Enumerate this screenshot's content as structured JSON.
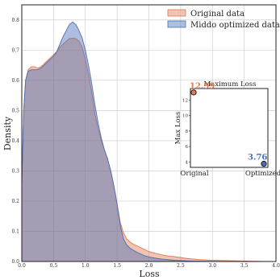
{
  "chart_data": [
    {
      "type": "area",
      "title": "",
      "xlabel": "Loss",
      "ylabel": "Density",
      "xlim": [
        0,
        4
      ],
      "ylim": [
        0,
        0.85
      ],
      "xticks": [
        "0.0",
        "0.5",
        "1.0",
        "1.5",
        "2.0",
        "2.5",
        "3.0",
        "3.5",
        "4.0"
      ],
      "yticks": [
        "0.0",
        "0.1",
        "0.2",
        "0.3",
        "0.4",
        "0.5",
        "0.6",
        "0.7",
        "0.8"
      ],
      "grid": true,
      "legend": "top-right",
      "series": [
        {
          "name": "Original data",
          "color": "#e07b54",
          "x": [
            0.0,
            0.03,
            0.06,
            0.1,
            0.15,
            0.2,
            0.25,
            0.3,
            0.35,
            0.4,
            0.45,
            0.5,
            0.55,
            0.6,
            0.65,
            0.7,
            0.75,
            0.8,
            0.85,
            0.9,
            0.95,
            1.0,
            1.05,
            1.1,
            1.15,
            1.2,
            1.25,
            1.3,
            1.35,
            1.4,
            1.45,
            1.5,
            1.55,
            1.6,
            1.65,
            1.7,
            1.75,
            1.8,
            1.85,
            1.9,
            1.95,
            2.0,
            2.1,
            2.2,
            2.3,
            2.4,
            2.5,
            2.6,
            2.7,
            2.8,
            2.9,
            3.0,
            3.2,
            3.4,
            3.6,
            3.8,
            4.0
          ],
          "y": [
            0.25,
            0.5,
            0.6,
            0.635,
            0.645,
            0.645,
            0.64,
            0.645,
            0.655,
            0.665,
            0.675,
            0.685,
            0.695,
            0.71,
            0.72,
            0.73,
            0.738,
            0.74,
            0.738,
            0.73,
            0.71,
            0.67,
            0.62,
            0.56,
            0.49,
            0.44,
            0.4,
            0.37,
            0.34,
            0.3,
            0.25,
            0.19,
            0.13,
            0.095,
            0.075,
            0.065,
            0.058,
            0.053,
            0.048,
            0.043,
            0.038,
            0.033,
            0.027,
            0.022,
            0.018,
            0.016,
            0.013,
            0.01,
            0.008,
            0.006,
            0.005,
            0.004,
            0.003,
            0.002,
            0.001,
            0.0005,
            0.0
          ]
        },
        {
          "name": "Middo optimized data",
          "color": "#4a6fb5",
          "x": [
            0.0,
            0.03,
            0.06,
            0.1,
            0.15,
            0.2,
            0.25,
            0.3,
            0.35,
            0.4,
            0.45,
            0.5,
            0.55,
            0.6,
            0.65,
            0.7,
            0.75,
            0.8,
            0.85,
            0.9,
            0.95,
            1.0,
            1.05,
            1.1,
            1.15,
            1.2,
            1.25,
            1.3,
            1.35,
            1.4,
            1.45,
            1.5,
            1.55,
            1.6,
            1.65,
            1.7,
            1.75,
            1.8,
            1.85,
            1.9,
            1.95,
            2.0,
            2.1,
            2.2,
            2.3,
            2.4,
            2.5,
            2.6,
            2.7,
            2.8,
            2.9,
            3.0,
            3.2,
            3.4,
            3.6,
            3.8,
            4.0
          ],
          "y": [
            0.25,
            0.5,
            0.6,
            0.63,
            0.635,
            0.635,
            0.635,
            0.64,
            0.65,
            0.66,
            0.67,
            0.68,
            0.695,
            0.72,
            0.745,
            0.765,
            0.785,
            0.793,
            0.785,
            0.765,
            0.74,
            0.7,
            0.65,
            0.59,
            0.52,
            0.46,
            0.41,
            0.37,
            0.34,
            0.3,
            0.25,
            0.19,
            0.12,
            0.075,
            0.055,
            0.045,
            0.038,
            0.032,
            0.027,
            0.022,
            0.018,
            0.015,
            0.011,
            0.008,
            0.006,
            0.004,
            0.003,
            0.002,
            0.0015,
            0.001,
            0.0008,
            0.0005,
            0.0003,
            0.0002,
            0.0001,
            0.0,
            0.0
          ]
        }
      ]
    },
    {
      "type": "scatter",
      "title": "Maximum Loss",
      "xlabel": "",
      "ylabel": "Max Loss",
      "categories": [
        "Original",
        "Optimized"
      ],
      "values": [
        12.99,
        3.76
      ],
      "value_labels": [
        "12.99",
        "3.76"
      ],
      "colors": [
        "#e07b54",
        "#4a6fb5"
      ],
      "yticks": [
        "4",
        "6",
        "8",
        "10",
        "12"
      ],
      "ylim": [
        3.3,
        13.5
      ]
    }
  ]
}
